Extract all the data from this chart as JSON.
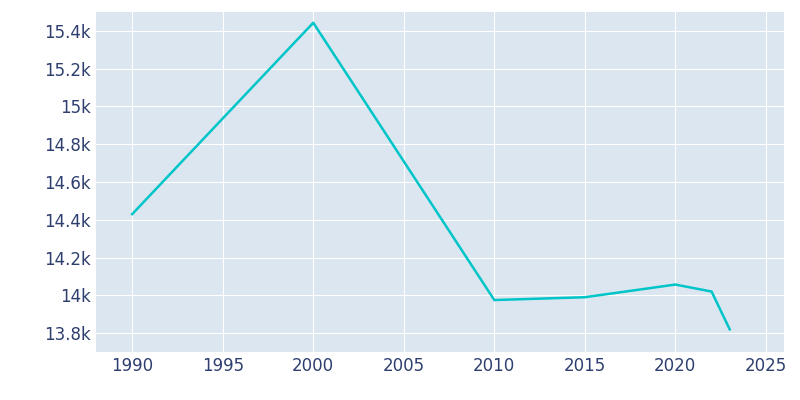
{
  "years": [
    1990,
    2000,
    2010,
    2015,
    2020,
    2022,
    2023
  ],
  "population": [
    14430,
    15443,
    13975,
    13990,
    14057,
    14020,
    13820
  ],
  "line_color": "#00C5C8",
  "bg_color": "#FFFFFF",
  "plot_bg_color": "#DCE6F0",
  "tick_color": "#2E3F6F",
  "grid_color": "#FFFFFF",
  "xlim": [
    1988,
    2026
  ],
  "ylim": [
    13700,
    15500
  ],
  "yticks": [
    13800,
    14000,
    14200,
    14400,
    14600,
    14800,
    15000,
    15200,
    15400
  ],
  "xticks": [
    1990,
    1995,
    2000,
    2005,
    2010,
    2015,
    2020,
    2025
  ],
  "linewidth": 1.8,
  "tick_fontsize": 12
}
